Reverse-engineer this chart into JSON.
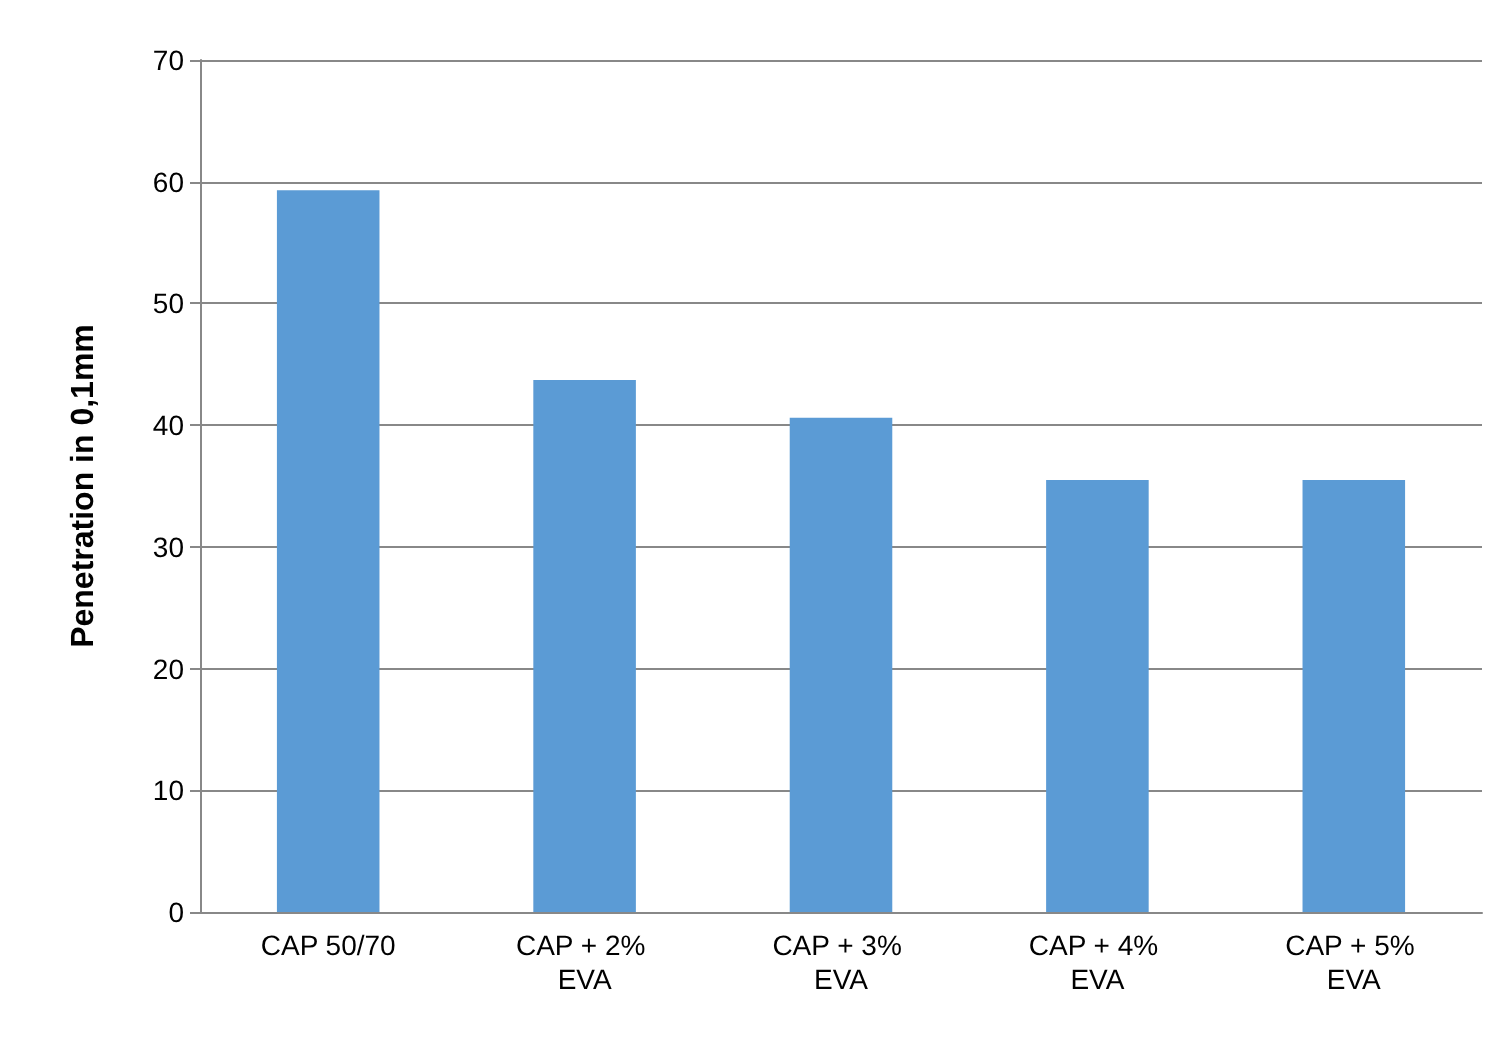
{
  "chart_data": {
    "type": "bar",
    "ylabel": "Penetration in 0,1mm",
    "categories": [
      "CAP 50/70",
      "CAP + 2% EVA",
      "CAP + 3% EVA",
      "CAP + 4% EVA",
      "CAP + 5% EVA"
    ],
    "values": [
      59.3,
      43.7,
      40.6,
      35.5,
      35.5
    ],
    "color": "#5b9bd5",
    "ylim": [
      0,
      70
    ],
    "yticks": [
      0,
      10,
      20,
      30,
      40,
      50,
      60,
      70
    ],
    "grid": "y"
  }
}
